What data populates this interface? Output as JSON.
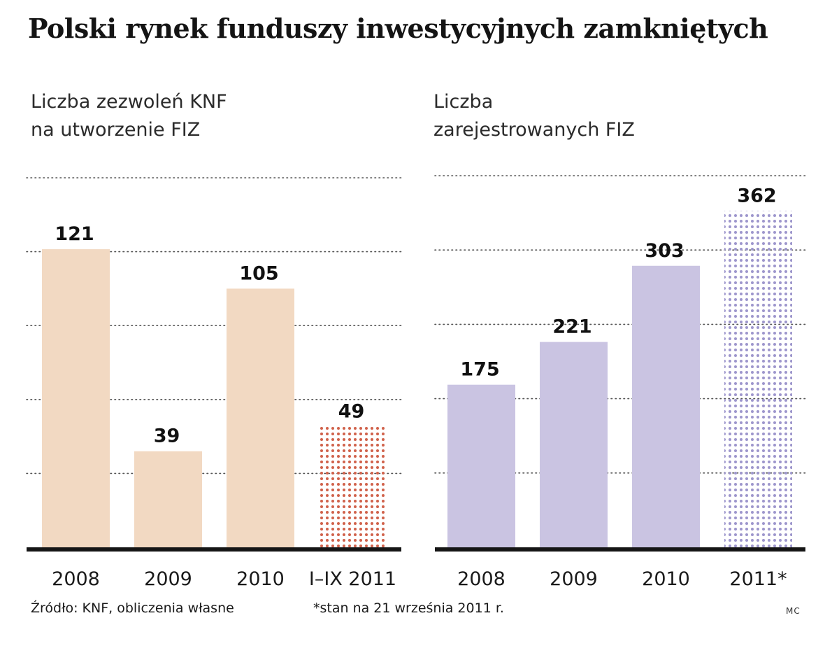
{
  "title": "Polski rynek funduszy inwestycyjnych zamkniętych",
  "chart_data": [
    {
      "type": "bar",
      "title_lines": [
        "Liczba zezwoleń KNF",
        "na utworzenie FIZ"
      ],
      "categories": [
        "2008",
        "2009",
        "2010",
        "I–IX 2011"
      ],
      "values": [
        121,
        39,
        105,
        49
      ],
      "labels": [
        "121",
        "39",
        "105",
        "49"
      ],
      "patterned": [
        false,
        false,
        false,
        true
      ],
      "ylim": [
        0,
        150
      ],
      "gridlines": [
        30,
        60,
        90,
        120,
        150
      ],
      "color": "#f2d9c2",
      "pattern_color": "#d0614a"
    },
    {
      "type": "bar",
      "title_lines": [
        "Liczba",
        "zarejestrowanych FIZ"
      ],
      "categories": [
        "2008",
        "2009",
        "2010",
        "2011*"
      ],
      "values": [
        175,
        221,
        303,
        362
      ],
      "labels": [
        "175",
        "221",
        "303",
        "362"
      ],
      "patterned": [
        false,
        false,
        false,
        true
      ],
      "ylim": [
        0,
        400
      ],
      "gridlines": [
        80,
        160,
        240,
        320,
        400
      ],
      "color": "#cac4e2",
      "pattern_color": "#9d96cc"
    }
  ],
  "footer": {
    "source": "Źródło: KNF, obliczenia własne",
    "note": "*stan na 21 września 2011 r.",
    "author": "MC"
  }
}
